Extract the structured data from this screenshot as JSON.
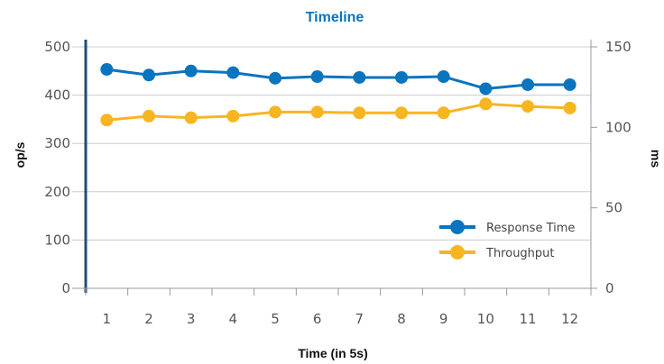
{
  "chart_data": {
    "type": "line",
    "title": "Timeline",
    "xlabel": "Time (in 5s)",
    "ylabel_left": "op/s",
    "ylabel_right": "ms",
    "categories": [
      "1",
      "2",
      "3",
      "4",
      "5",
      "6",
      "7",
      "8",
      "9",
      "10",
      "11",
      "12"
    ],
    "left_axis": {
      "ticks": [
        "0",
        "100",
        "200",
        "300",
        "400",
        "500"
      ],
      "range": [
        0,
        500
      ]
    },
    "right_axis": {
      "ticks": [
        "0",
        "50",
        "100",
        "150"
      ],
      "range": [
        0,
        150
      ]
    },
    "grid": "horizontal",
    "legend_position": "bottom-right",
    "series": [
      {
        "name": "Response Time",
        "axis": "right",
        "color": "#0a74bf",
        "values": [
          136,
          132.5,
          135,
          134,
          130.5,
          131.5,
          131,
          131,
          131.5,
          124,
          126.5,
          126.5
        ]
      },
      {
        "name": "Throughput",
        "axis": "right",
        "color": "#f7b521",
        "values": [
          104.5,
          107,
          106,
          107,
          109.5,
          109.5,
          109,
          109,
          109,
          114.5,
          113,
          112
        ]
      }
    ],
    "colors": {
      "title": "#0a74bf",
      "left_axis_line": "#1f4e79",
      "grid": "#cccccc"
    }
  }
}
